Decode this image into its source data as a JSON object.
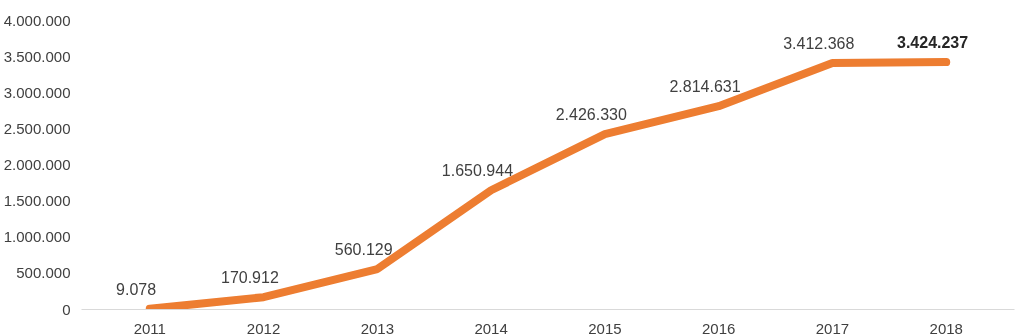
{
  "chart_data": {
    "type": "line",
    "categories": [
      "2011",
      "2012",
      "2013",
      "2014",
      "2015",
      "2016",
      "2017",
      "2018"
    ],
    "series": [
      {
        "color": "#ed7d31",
        "values": [
          9078,
          170912,
          560129,
          1650944,
          2426330,
          2814631,
          3412368,
          3424237
        ],
        "value_labels": [
          "9.078",
          "170.912",
          "560.129",
          "1.650.944",
          "2.426.330",
          "2.814.631",
          "3.412.368",
          "3.424.237"
        ]
      }
    ],
    "ylim": [
      0,
      4000000
    ],
    "yticks": [
      {
        "value": 0,
        "label": "0"
      },
      {
        "value": 500000,
        "label": "500.000"
      },
      {
        "value": 1000000,
        "label": "1.000.000"
      },
      {
        "value": 1500000,
        "label": "1.500.000"
      },
      {
        "value": 2000000,
        "label": "2.000.000"
      },
      {
        "value": 2500000,
        "label": "2.500.000"
      },
      {
        "value": 3000000,
        "label": "3.000.000"
      },
      {
        "value": 3500000,
        "label": "3.500.000"
      },
      {
        "value": 4000000,
        "label": "4.000.000"
      }
    ],
    "grid": false,
    "marker": "none",
    "line_style": "solid"
  }
}
